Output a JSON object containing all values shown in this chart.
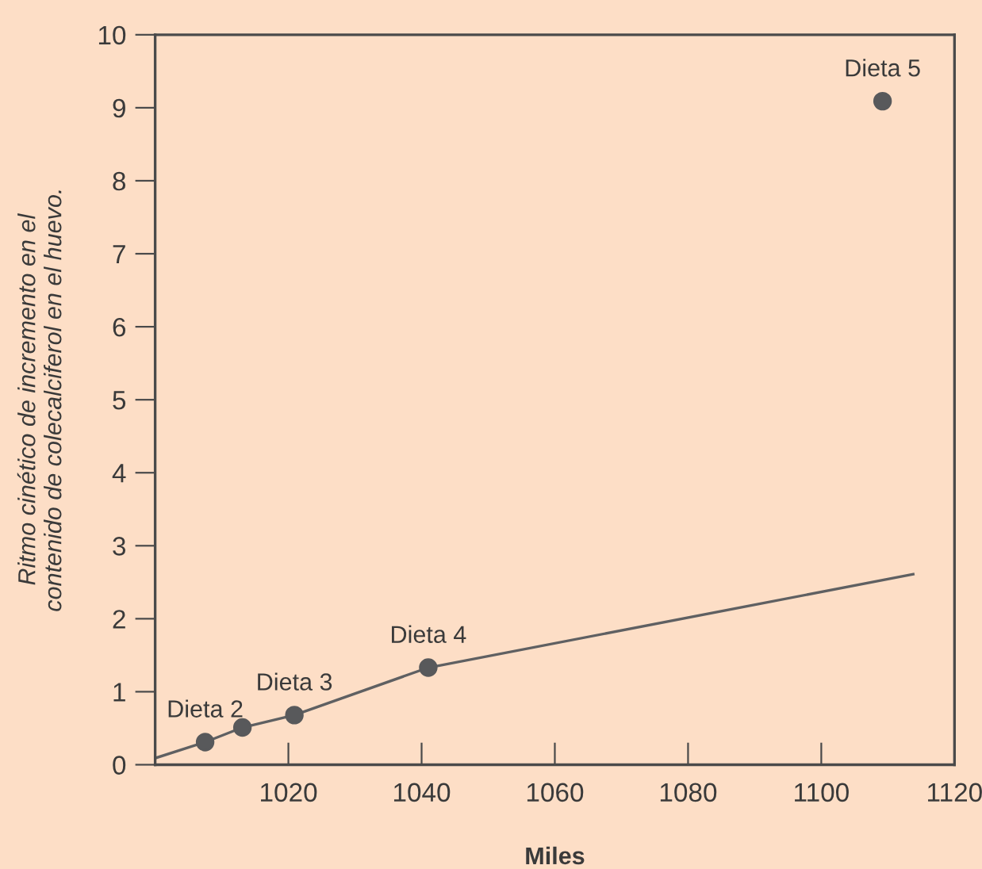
{
  "chart_data": {
    "type": "scatter",
    "xlabel": "Miles",
    "ylabel": "Ritmo cinético de incremento en el\ncontenido de colecalciferol en el huevo.",
    "xlim": [
      1000,
      1120
    ],
    "xticks": [
      1020,
      1040,
      1060,
      1080,
      1100,
      1120
    ],
    "ylim": [
      0,
      10
    ],
    "yticks": [
      0,
      1,
      2,
      3,
      4,
      5,
      6,
      7,
      8,
      9,
      10
    ],
    "grid": false,
    "legend": false,
    "marker": "circle",
    "series": [
      {
        "type": "line",
        "color": "#5f6062",
        "x": [
          1000,
          1007.5,
          1013.1,
          1020.9,
          1041,
          1113.8
        ],
        "values": [
          0.09,
          0.31,
          0.51,
          0.68,
          1.33,
          2.61
        ],
        "marker": "none"
      },
      {
        "color": "#58595b",
        "x": [
          1007.5,
          1013.1,
          1020.9,
          1041,
          1109.2
        ],
        "values": [
          0.31,
          0.51,
          0.68,
          1.33,
          9.09
        ],
        "value_labels": [
          "Dieta 2",
          null,
          "Dieta 3",
          "Dieta 4",
          "Dieta 5"
        ]
      }
    ]
  }
}
